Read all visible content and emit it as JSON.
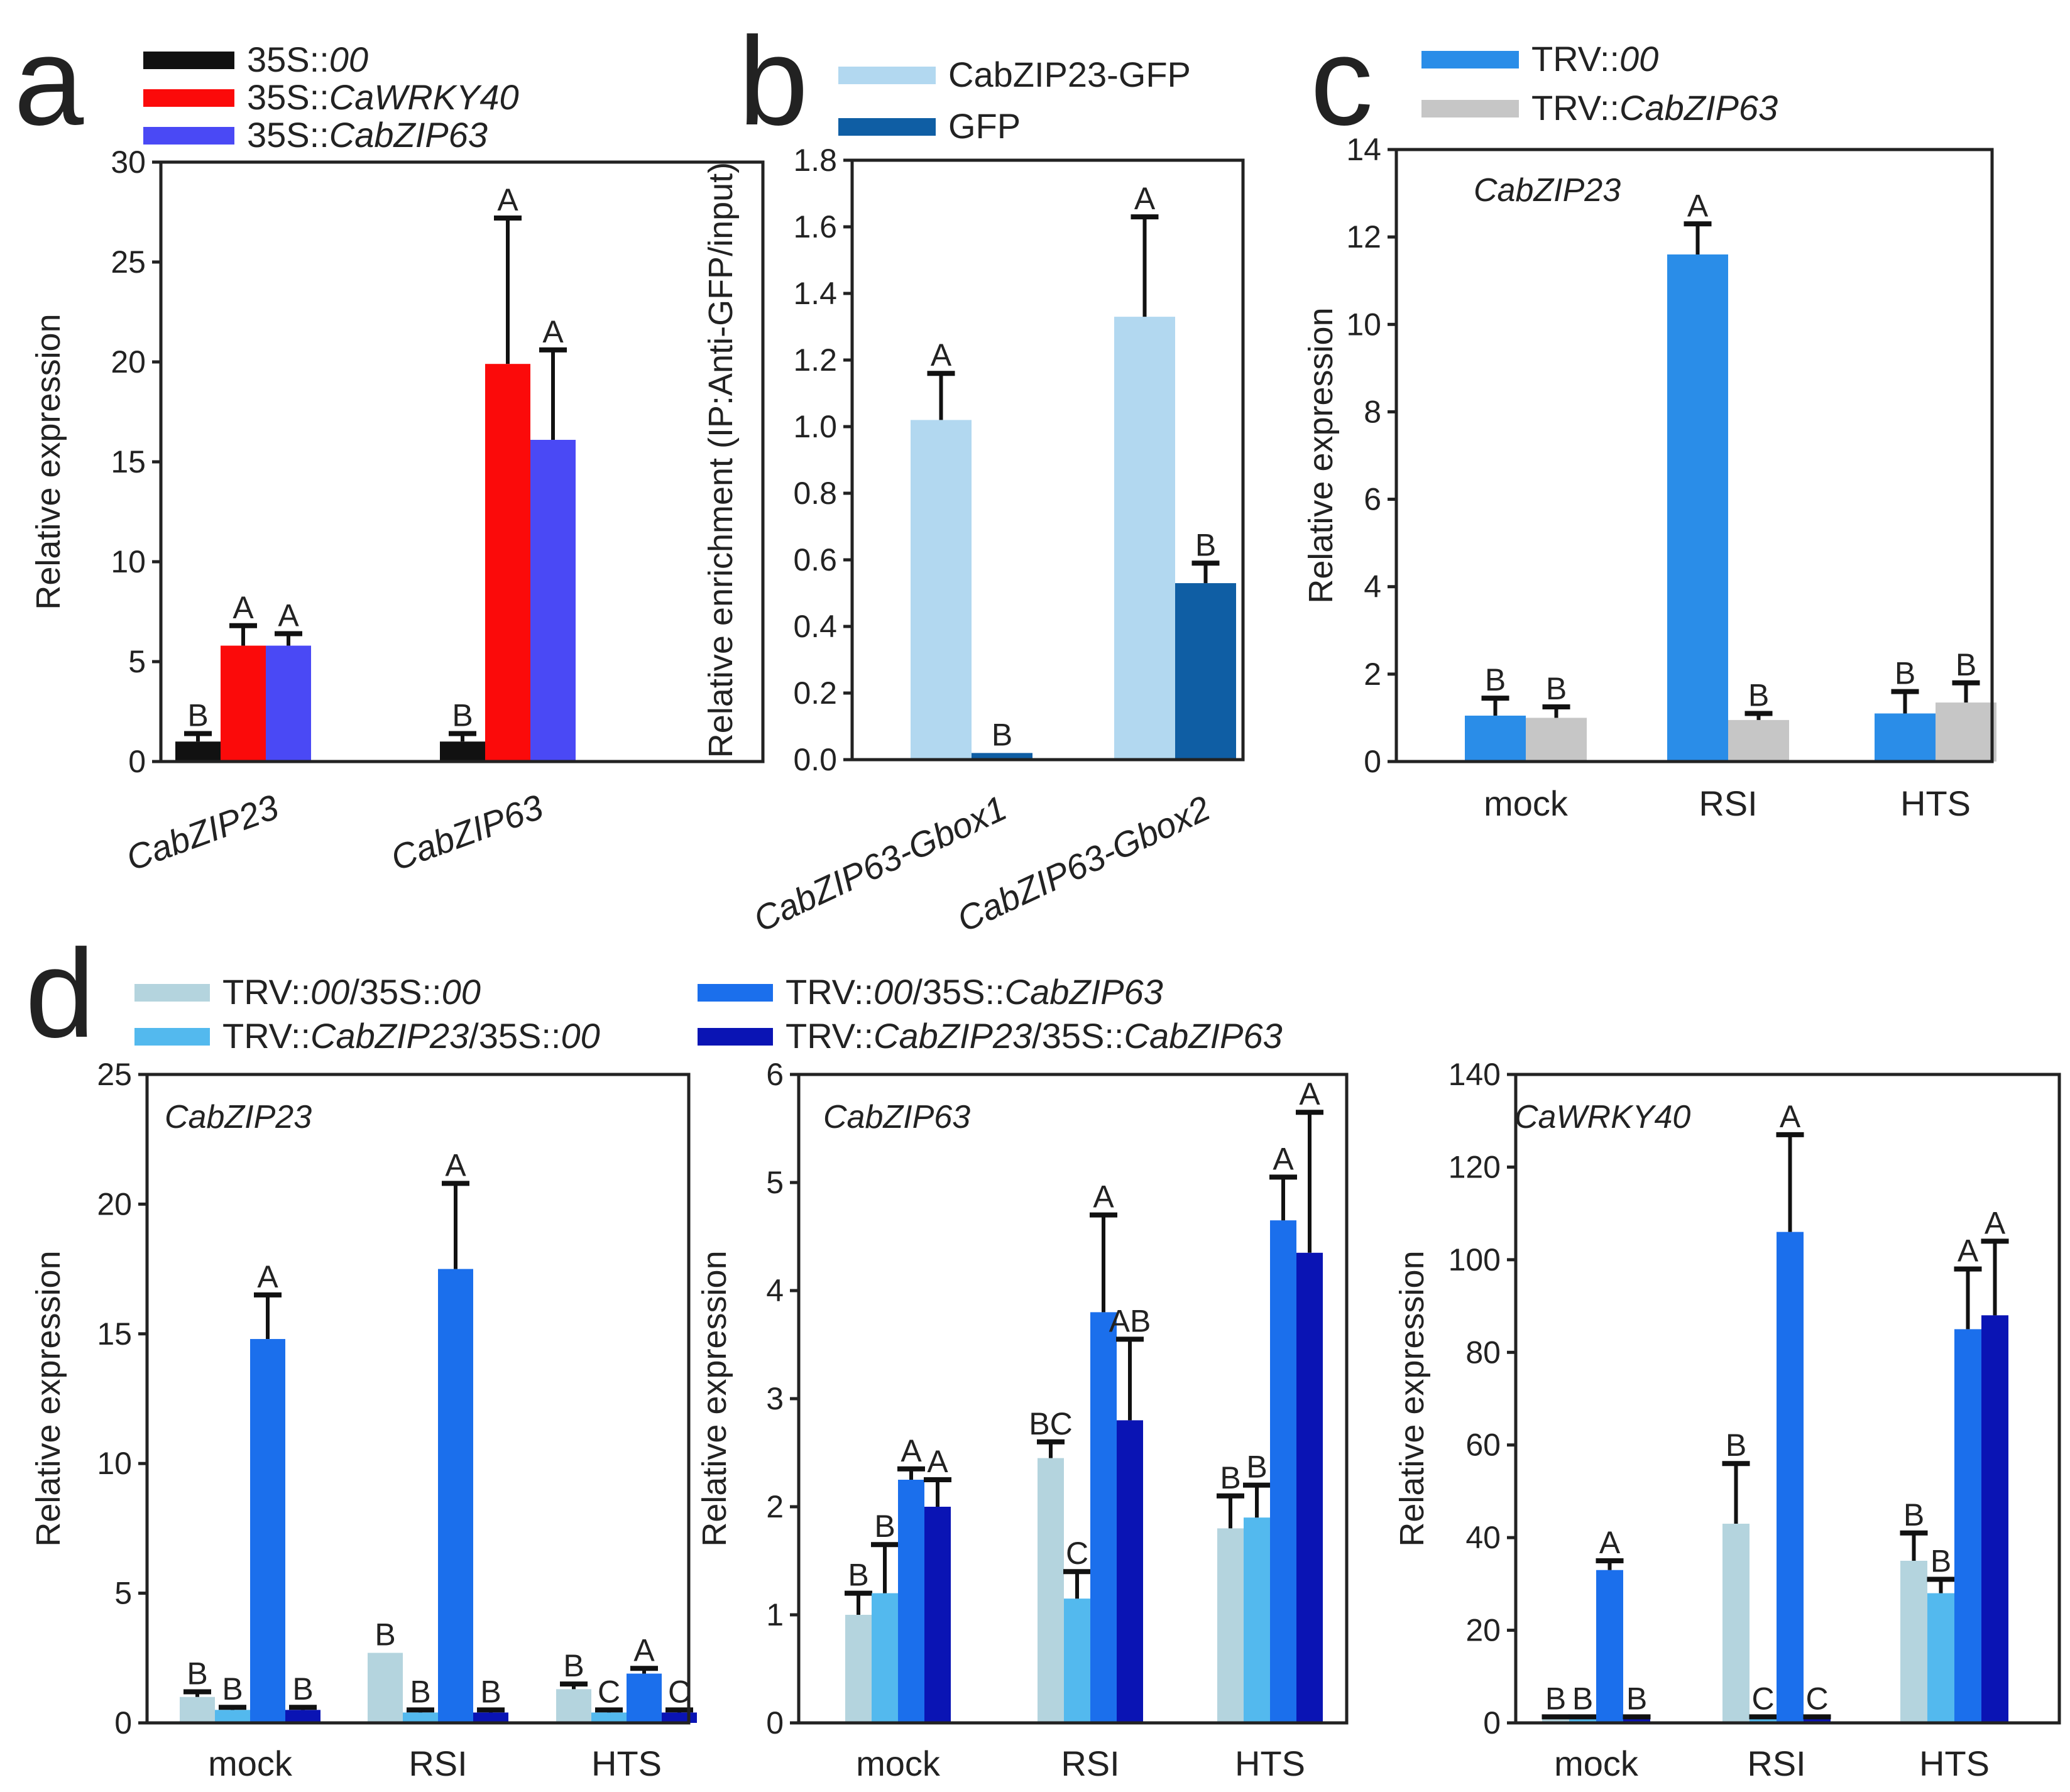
{
  "figure": {
    "panel_letters": [
      "a",
      "b",
      "c",
      "d"
    ]
  },
  "chart_data": [
    {
      "id": "a",
      "type": "bar",
      "letter": "a",
      "title": "",
      "xlabel": "",
      "ylabel": "Relative expression",
      "ylim": [
        0,
        30
      ],
      "yticks": [
        0,
        5,
        10,
        15,
        20,
        25,
        30
      ],
      "categories": [
        "CabZIP23",
        "CabZIP63"
      ],
      "cat_italic": true,
      "cat_rotate": true,
      "gene_label": "",
      "series": [
        {
          "name": [
            [
              "35S::",
              false
            ],
            [
              "00",
              true
            ]
          ],
          "color": "#111111",
          "values": [
            1.0,
            1.0
          ],
          "errors": [
            0.4,
            0.4
          ],
          "letters": [
            "B",
            "B"
          ]
        },
        {
          "name": [
            [
              "35S::",
              false
            ],
            [
              "CaWRKY40",
              true
            ]
          ],
          "color": "#fb0a0a",
          "values": [
            5.8,
            19.9
          ],
          "errors": [
            1.0,
            7.3
          ],
          "letters": [
            "A",
            "A"
          ]
        },
        {
          "name": [
            [
              "35S::",
              false
            ],
            [
              "CabZIP63",
              true
            ]
          ],
          "color": "#4a49f5",
          "values": [
            5.8,
            16.1
          ],
          "errors": [
            0.6,
            4.5
          ],
          "letters": [
            "A",
            "A"
          ]
        }
      ]
    },
    {
      "id": "b",
      "type": "bar",
      "letter": "b",
      "title": "",
      "xlabel": "",
      "ylabel": "Relative enrichment (IP:Anti-GFP/input)",
      "ylim": [
        0,
        1.8
      ],
      "yticks": [
        0.0,
        0.2,
        0.4,
        0.6,
        0.8,
        1.0,
        1.2,
        1.4,
        1.6,
        1.8
      ],
      "tick_labels": [
        "0.0",
        "0.2",
        "0.4",
        "0.6",
        "0.8",
        "1.0",
        "1.2",
        "1.4",
        "1.6",
        "1.8"
      ],
      "categories": [
        "CabZIP63-Gbox1",
        "CabZIP63-Gbox2"
      ],
      "cat_italic": true,
      "cat_rotate": true,
      "gene_label": "",
      "series": [
        {
          "name": [
            [
              "CabZIP23-GFP",
              false
            ]
          ],
          "color": "#b2d8f0",
          "values": [
            1.02,
            1.33
          ],
          "errors": [
            0.14,
            0.3
          ],
          "letters": [
            "A",
            "A"
          ]
        },
        {
          "name": [
            [
              "GFP",
              false
            ]
          ],
          "color": "#0f5ea4",
          "values": [
            0.02,
            0.53
          ],
          "errors": [
            0.0,
            0.06
          ],
          "letters": [
            "B",
            "B"
          ]
        }
      ]
    },
    {
      "id": "c",
      "type": "bar",
      "letter": "c",
      "title": "",
      "xlabel": "",
      "ylabel": "Relative expression",
      "ylim": [
        0,
        14
      ],
      "yticks": [
        0,
        2,
        4,
        6,
        8,
        10,
        12,
        14
      ],
      "categories": [
        "mock",
        "RSI",
        "HTS"
      ],
      "cat_italic": false,
      "cat_rotate": false,
      "gene_label": "CabZIP23",
      "series": [
        {
          "name": [
            [
              "TRV::",
              false
            ],
            [
              "00",
              true
            ]
          ],
          "color": "#2a8de8",
          "values": [
            1.05,
            11.6,
            1.1
          ],
          "errors": [
            0.4,
            0.7,
            0.5
          ],
          "letters": [
            "B",
            "A",
            "B"
          ]
        },
        {
          "name": [
            [
              "TRV::",
              false
            ],
            [
              "CabZIP63",
              true
            ]
          ],
          "color": "#c6c6c6",
          "values": [
            1.0,
            0.95,
            1.35
          ],
          "errors": [
            0.25,
            0.15,
            0.45
          ],
          "letters": [
            "B",
            "B",
            "B"
          ]
        }
      ]
    },
    {
      "id": "d1",
      "type": "bar",
      "letter": "d",
      "title": "",
      "xlabel": "",
      "ylabel": "Relative expression",
      "ylim": [
        0,
        25
      ],
      "yticks": [
        0,
        5,
        10,
        15,
        20,
        25
      ],
      "categories": [
        "mock",
        "RSI",
        "HTS"
      ],
      "cat_italic": false,
      "cat_rotate": false,
      "gene_label": "CabZIP23",
      "series": [
        {
          "name": [
            [
              "TRV::",
              false
            ],
            [
              "00",
              true
            ],
            [
              "/35S::",
              false
            ],
            [
              "00",
              true
            ]
          ],
          "color": "#b4d4de",
          "values": [
            1.0,
            2.7,
            1.3
          ],
          "errors": [
            0.2,
            0.0,
            0.2
          ],
          "letters": [
            "B",
            "B",
            "B"
          ]
        },
        {
          "name": [
            [
              "TRV::",
              false
            ],
            [
              "CabZIP23",
              true
            ],
            [
              "/35S::",
              false
            ],
            [
              "00",
              true
            ]
          ],
          "color": "#53b9ee",
          "values": [
            0.5,
            0.4,
            0.4
          ],
          "errors": [
            0.1,
            0.1,
            0.1
          ],
          "letters": [
            "B",
            "B",
            "C"
          ]
        },
        {
          "name": [
            [
              "TRV::",
              false
            ],
            [
              "00",
              true
            ],
            [
              "/35S::",
              false
            ],
            [
              "CabZIP63",
              true
            ]
          ],
          "color": "#1b6fec",
          "values": [
            14.8,
            17.5,
            1.9
          ],
          "errors": [
            1.7,
            3.3,
            0.2
          ],
          "letters": [
            "A",
            "A",
            "A"
          ]
        },
        {
          "name": [
            [
              "TRV::",
              false
            ],
            [
              "CabZIP23",
              true
            ],
            [
              "/35S::",
              false
            ],
            [
              "CabZIP63",
              true
            ]
          ],
          "color": "#0a14b4",
          "values": [
            0.5,
            0.4,
            0.4
          ],
          "errors": [
            0.1,
            0.1,
            0.1
          ],
          "letters": [
            "B",
            "B",
            "C"
          ]
        }
      ]
    },
    {
      "id": "d2",
      "type": "bar",
      "letter": "",
      "title": "",
      "xlabel": "",
      "ylabel": "Relative expression",
      "ylim": [
        0,
        6
      ],
      "yticks": [
        0,
        1,
        2,
        3,
        4,
        5,
        6
      ],
      "categories": [
        "mock",
        "RSI",
        "HTS"
      ],
      "cat_italic": false,
      "cat_rotate": false,
      "gene_label": "CabZIP63",
      "series": [
        {
          "name": [
            [
              "TRV::",
              false
            ],
            [
              "00",
              true
            ],
            [
              "/35S::",
              false
            ],
            [
              "00",
              true
            ]
          ],
          "color": "#b4d4de",
          "values": [
            1.0,
            2.45,
            1.8
          ],
          "errors": [
            0.2,
            0.15,
            0.3
          ],
          "letters": [
            "B",
            "BC",
            "B"
          ]
        },
        {
          "name": [
            [
              "TRV::",
              false
            ],
            [
              "CabZIP23",
              true
            ],
            [
              "/35S::",
              false
            ],
            [
              "00",
              true
            ]
          ],
          "color": "#53b9ee",
          "values": [
            1.2,
            1.15,
            1.9
          ],
          "errors": [
            0.45,
            0.25,
            0.3
          ],
          "letters": [
            "B",
            "C",
            "B"
          ]
        },
        {
          "name": [
            [
              "TRV::",
              false
            ],
            [
              "00",
              true
            ],
            [
              "/35S::",
              false
            ],
            [
              "CabZIP63",
              true
            ]
          ],
          "color": "#1b6fec",
          "values": [
            2.25,
            3.8,
            4.65
          ],
          "errors": [
            0.1,
            0.9,
            0.4
          ],
          "letters": [
            "A",
            "A",
            "A"
          ]
        },
        {
          "name": [
            [
              "TRV::",
              false
            ],
            [
              "CabZIP23",
              true
            ],
            [
              "/35S::",
              false
            ],
            [
              "CabZIP63",
              true
            ]
          ],
          "color": "#0a14b4",
          "values": [
            2.0,
            2.8,
            4.35
          ],
          "errors": [
            0.25,
            0.75,
            1.3
          ],
          "letters": [
            "A",
            "AB",
            "A"
          ]
        }
      ]
    },
    {
      "id": "d3",
      "type": "bar",
      "letter": "",
      "title": "",
      "xlabel": "",
      "ylabel": "Relative expression",
      "ylim": [
        0,
        140
      ],
      "yticks": [
        0,
        20,
        40,
        60,
        80,
        100,
        120,
        140
      ],
      "categories": [
        "mock",
        "RSI",
        "HTS"
      ],
      "cat_italic": false,
      "cat_rotate": false,
      "gene_label": "CaWRKY40",
      "series": [
        {
          "name": [
            [
              "TRV::",
              false
            ],
            [
              "00",
              true
            ],
            [
              "/35S::",
              false
            ],
            [
              "00",
              true
            ]
          ],
          "color": "#b4d4de",
          "values": [
            1.0,
            43.0,
            35.0
          ],
          "errors": [
            0.3,
            13.0,
            6.0
          ],
          "letters": [
            "B",
            "B",
            "B"
          ]
        },
        {
          "name": [
            [
              "TRV::",
              false
            ],
            [
              "CabZIP23",
              true
            ],
            [
              "/35S::",
              false
            ],
            [
              "00",
              true
            ]
          ],
          "color": "#53b9ee",
          "values": [
            1.0,
            1.0,
            28.0
          ],
          "errors": [
            0.3,
            0.3,
            3.0
          ],
          "letters": [
            "B",
            "C",
            "B"
          ]
        },
        {
          "name": [
            [
              "TRV::",
              false
            ],
            [
              "00",
              true
            ],
            [
              "/35S::",
              false
            ],
            [
              "CabZIP63",
              true
            ]
          ],
          "color": "#1b6fec",
          "values": [
            33.0,
            106.0,
            85.0
          ],
          "errors": [
            2.0,
            21.0,
            13.0
          ],
          "letters": [
            "A",
            "A",
            "A"
          ]
        },
        {
          "name": [
            [
              "TRV::",
              false
            ],
            [
              "CabZIP23",
              true
            ],
            [
              "/35S::",
              false
            ],
            [
              "CabZIP63",
              true
            ]
          ],
          "color": "#0a14b4",
          "values": [
            1.0,
            1.0,
            88.0
          ],
          "errors": [
            0.3,
            0.3,
            16.0
          ],
          "letters": [
            "B",
            "C",
            "A"
          ]
        }
      ]
    }
  ]
}
